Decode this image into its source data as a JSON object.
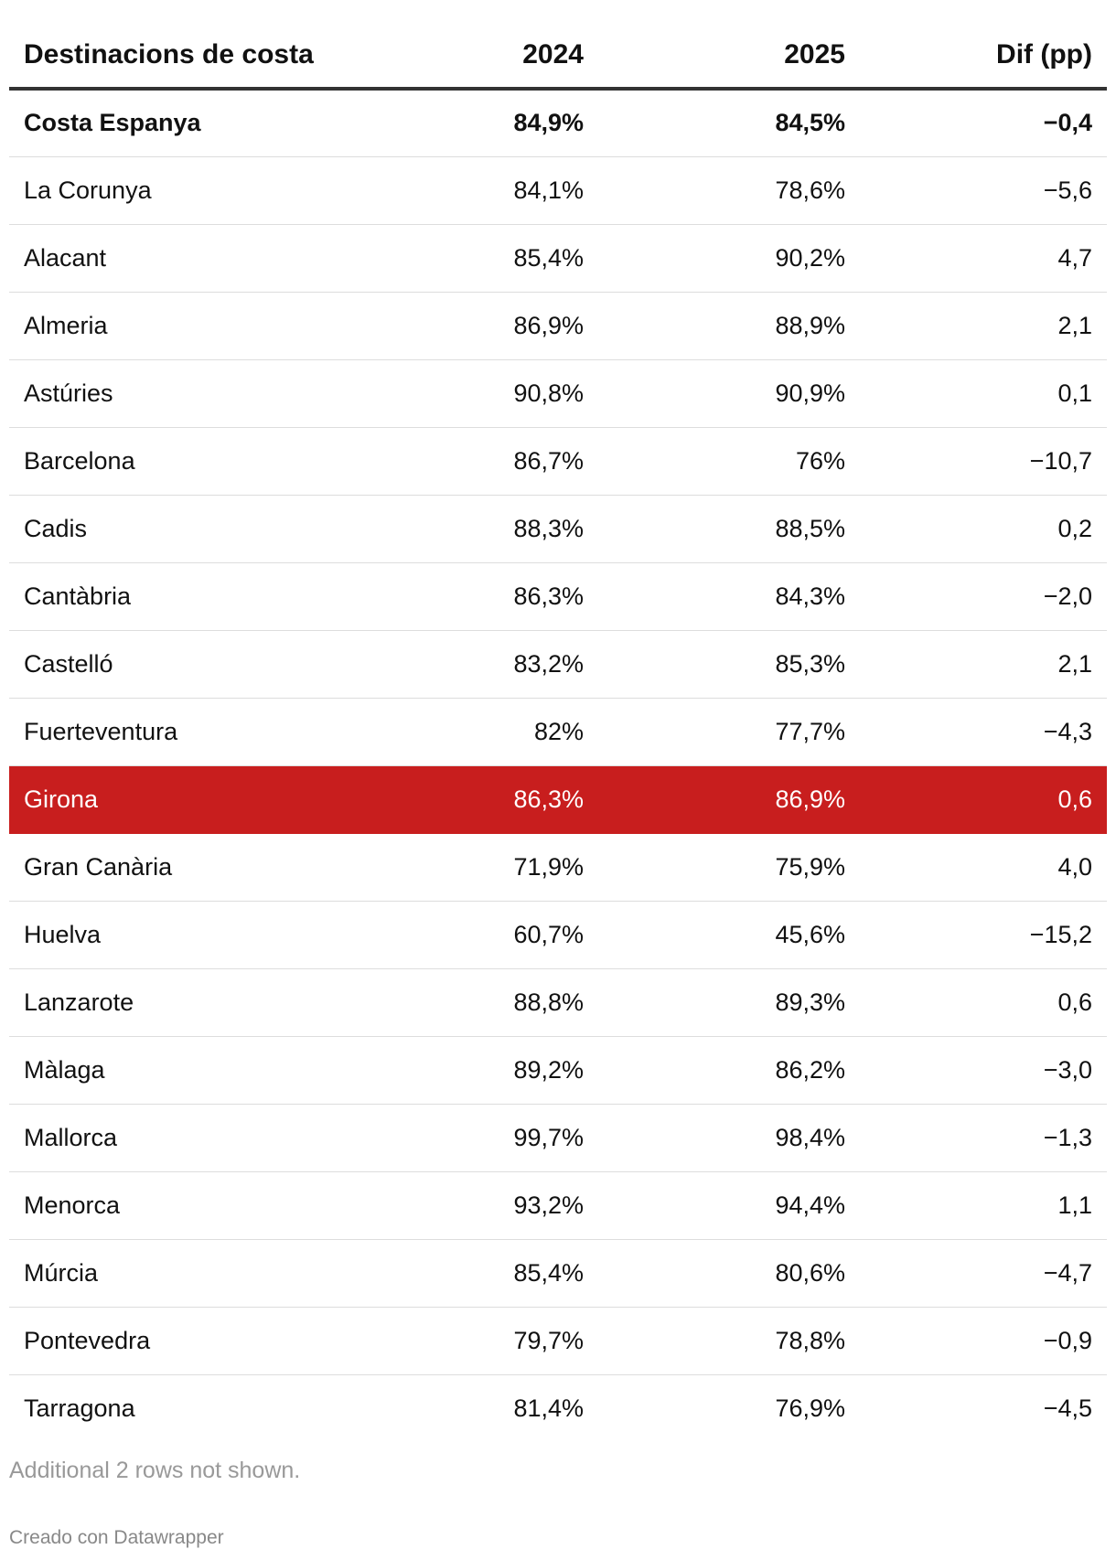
{
  "chart_data": {
    "type": "table",
    "columns": [
      "Destinacions de costa",
      "2024",
      "2025",
      "Dif (pp)"
    ],
    "rows": [
      {
        "name": "Costa Espanya",
        "y2024": "84,9%",
        "y2025": "84,5%",
        "dif": "−0,4",
        "bold": true
      },
      {
        "name": "La Corunya",
        "y2024": "84,1%",
        "y2025": "78,6%",
        "dif": "−5,6"
      },
      {
        "name": "Alacant",
        "y2024": "85,4%",
        "y2025": "90,2%",
        "dif": "4,7"
      },
      {
        "name": "Almeria",
        "y2024": "86,9%",
        "y2025": "88,9%",
        "dif": "2,1"
      },
      {
        "name": "Astúries",
        "y2024": "90,8%",
        "y2025": "90,9%",
        "dif": "0,1"
      },
      {
        "name": "Barcelona",
        "y2024": "86,7%",
        "y2025": "76%",
        "dif": "−10,7"
      },
      {
        "name": "Cadis",
        "y2024": "88,3%",
        "y2025": "88,5%",
        "dif": "0,2"
      },
      {
        "name": "Cantàbria",
        "y2024": "86,3%",
        "y2025": "84,3%",
        "dif": "−2,0"
      },
      {
        "name": "Castelló",
        "y2024": "83,2%",
        "y2025": "85,3%",
        "dif": "2,1"
      },
      {
        "name": "Fuerteventura",
        "y2024": "82%",
        "y2025": "77,7%",
        "dif": "−4,3"
      },
      {
        "name": "Girona",
        "y2024": "86,3%",
        "y2025": "86,9%",
        "dif": "0,6",
        "highlight": true
      },
      {
        "name": "Gran Canària",
        "y2024": "71,9%",
        "y2025": "75,9%",
        "dif": "4,0"
      },
      {
        "name": "Huelva",
        "y2024": "60,7%",
        "y2025": "45,6%",
        "dif": "−15,2"
      },
      {
        "name": "Lanzarote",
        "y2024": "88,8%",
        "y2025": "89,3%",
        "dif": "0,6"
      },
      {
        "name": "Màlaga",
        "y2024": "89,2%",
        "y2025": "86,2%",
        "dif": "−3,0"
      },
      {
        "name": "Mallorca",
        "y2024": "99,7%",
        "y2025": "98,4%",
        "dif": "−1,3"
      },
      {
        "name": "Menorca",
        "y2024": "93,2%",
        "y2025": "94,4%",
        "dif": "1,1"
      },
      {
        "name": "Múrcia",
        "y2024": "85,4%",
        "y2025": "80,6%",
        "dif": "−4,7"
      },
      {
        "name": "Pontevedra",
        "y2024": "79,7%",
        "y2025": "78,8%",
        "dif": "−0,9"
      },
      {
        "name": "Tarragona",
        "y2024": "81,4%",
        "y2025": "76,9%",
        "dif": "−4,5"
      }
    ],
    "highlight_color": "#c81e1e"
  },
  "notes": "Additional 2 rows not shown.",
  "credit": "Creado con Datawrapper"
}
